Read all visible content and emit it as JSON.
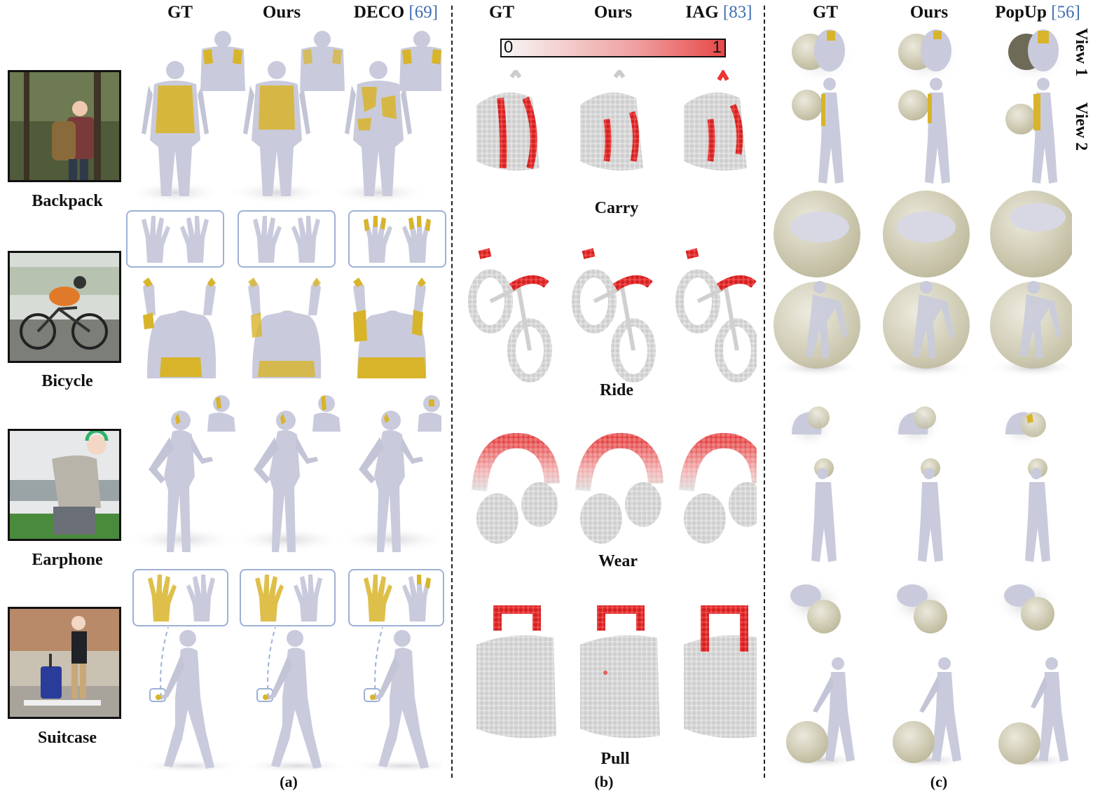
{
  "panel_a": {
    "headers": [
      {
        "text": "GT",
        "ref": ""
      },
      {
        "text": "Ours",
        "ref": ""
      },
      {
        "text": "DECO ",
        "ref": "[69]"
      }
    ],
    "objects": [
      "Backpack",
      "Bicycle",
      "Earphone",
      "Suitcase"
    ],
    "caption": "(a)"
  },
  "panel_b": {
    "headers": [
      {
        "text": "GT",
        "ref": ""
      },
      {
        "text": "Ours",
        "ref": ""
      },
      {
        "text": "IAG ",
        "ref": "[83]"
      }
    ],
    "colorbar": {
      "min_label": "0",
      "max_label": "1"
    },
    "affordances": [
      "Carry",
      "Ride",
      "Wear",
      "Pull"
    ],
    "caption": "(b)"
  },
  "panel_c": {
    "headers": [
      {
        "text": "GT",
        "ref": ""
      },
      {
        "text": "Ours",
        "ref": ""
      },
      {
        "text": "PopUp ",
        "ref": "[56]"
      }
    ],
    "view_labels": [
      "View 1",
      "View 2"
    ],
    "caption": "(c)"
  },
  "colors": {
    "mesh": "#c9cbdc",
    "contact": "#d8b42a",
    "affordance_high": "#e32b2b",
    "point_low": "#d9d9d9",
    "sphere": "#cfcbb3",
    "hand_box_border": "#9db1d6",
    "citation": "#3f6fb0"
  }
}
